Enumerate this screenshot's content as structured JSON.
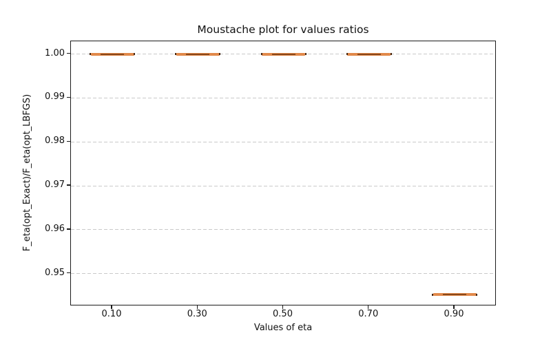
{
  "window": {
    "background": "#ffffff"
  },
  "chart_data": {
    "type": "box",
    "title": "Moustache plot for values ratios",
    "xlabel": "Values of eta",
    "ylabel": "F_eta(opt_Exact)/F_eta(opt_LBFGS)",
    "categories": [
      "0.10",
      "0.30",
      "0.50",
      "0.70",
      "0.90"
    ],
    "boxes": [
      {
        "eta": "0.10",
        "median": 1.0,
        "q1": 1.0,
        "q3": 1.0,
        "spread": "negligible (collapsed box)"
      },
      {
        "eta": "0.30",
        "median": 1.0,
        "q1": 1.0,
        "q3": 1.0,
        "spread": "negligible (collapsed box)"
      },
      {
        "eta": "0.50",
        "median": 1.0,
        "q1": 1.0,
        "q3": 1.0,
        "spread": "negligible (collapsed box)"
      },
      {
        "eta": "0.70",
        "median": 1.0,
        "q1": 1.0,
        "q3": 1.0,
        "spread": "negligible (collapsed box)"
      },
      {
        "eta": "0.90",
        "median": 0.9452,
        "q1": 0.9452,
        "q3": 0.9452,
        "spread": "negligible (collapsed box)"
      }
    ],
    "medians": [
      1.0,
      1.0,
      1.0,
      1.0,
      0.9452
    ],
    "yticks": [
      "1.00",
      "0.99",
      "0.98",
      "0.97",
      "0.96",
      "0.95"
    ],
    "ytick_values": [
      1.0,
      0.99,
      0.98,
      0.97,
      0.96,
      0.95
    ],
    "ylim": [
      0.9426,
      1.0029
    ],
    "grid": "horizontal-dashed",
    "legend": "none",
    "colors": {
      "box_fill": "#e1894a",
      "median": "#8a4a1c",
      "cap_ends": "#442610",
      "grid": "#c9c9c9",
      "spine": "#1a1a1a",
      "text": "#111111",
      "background": "#ffffff"
    }
  }
}
